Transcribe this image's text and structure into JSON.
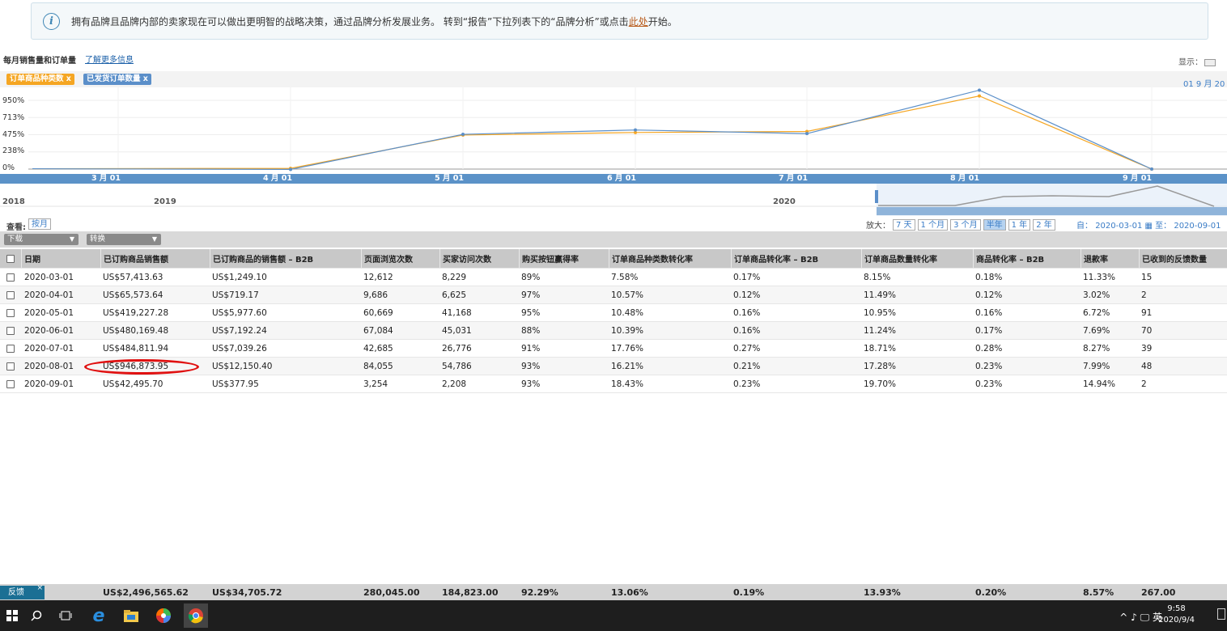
{
  "banner": {
    "icon": "info-icon",
    "message": "拥有品牌且品牌内部的卖家现在可以做出更明智的战略决策，通过品牌分析发展业务。 转到“报告”下拉列表下的“品牌分析”或点击",
    "link": "此处",
    "suffix": "开始。"
  },
  "chart": {
    "title": "每月销售量和订单量",
    "learn_more": "了解更多信息",
    "display_label": "显示：",
    "legend": [
      {
        "label": "订单商品种类数 x",
        "color": "#f5a623"
      },
      {
        "label": "已发货订单数量 x",
        "color": "#5b8fc9"
      }
    ],
    "range_label": "01 9 月 20",
    "y_ticks": [
      "950%",
      "713%",
      "475%",
      "238%",
      "0%"
    ],
    "months": [
      "3 月 01",
      "4 月 01",
      "5 月 01",
      "6 月 01",
      "7 月 01",
      "8 月 01",
      "9 月 01"
    ],
    "years": [
      "2018",
      "2019",
      "2020"
    ]
  },
  "chart_data": {
    "type": "line",
    "x": [
      "3 月 01",
      "4 月 01",
      "5 月 01",
      "6 月 01",
      "7 月 01",
      "8 月 01",
      "9 月 01"
    ],
    "series": [
      {
        "name": "订单商品种类数",
        "color": "#f5a623",
        "values": [
          5,
          10,
          470,
          505,
          520,
          1010,
          0
        ]
      },
      {
        "name": "已发货订单数量",
        "color": "#5b8fc9",
        "values": [
          5,
          -5,
          480,
          540,
          490,
          1090,
          0
        ]
      }
    ],
    "ylim": [
      0,
      950
    ]
  },
  "view": {
    "label": "查看:",
    "button": "按月",
    "zoom_label": "放大：",
    "zoom_options": [
      "7 天",
      "1 个月",
      "3 个月",
      "半年",
      "1 年",
      "2 年"
    ],
    "zoom_active": "半年",
    "from_label": "自：",
    "from": "2020-03-01",
    "to_label": "至：",
    "to": "2020-09-01"
  },
  "toolbar": {
    "download": "下载",
    "convert": "转换"
  },
  "table": {
    "headers": [
      "日期",
      "已订购商品销售额",
      "已订购商品的销售额 – B2B",
      "页面浏览次数",
      "买家访问次数",
      "购买按钮赢得率",
      "订单商品种类数转化率",
      "订单商品转化率 – B2B",
      "订单商品数量转化率",
      "商品转化率 – B2B",
      "退款率",
      "已收到的反馈数量"
    ],
    "rows": [
      [
        "2020-03-01",
        "US$57,413.63",
        "US$1,249.10",
        "12,612",
        "8,229",
        "89%",
        "7.58%",
        "0.17%",
        "8.15%",
        "0.18%",
        "11.33%",
        "15"
      ],
      [
        "2020-04-01",
        "US$65,573.64",
        "US$719.17",
        "9,686",
        "6,625",
        "97%",
        "10.57%",
        "0.12%",
        "11.49%",
        "0.12%",
        "3.02%",
        "2"
      ],
      [
        "2020-05-01",
        "US$419,227.28",
        "US$5,977.60",
        "60,669",
        "41,168",
        "95%",
        "10.48%",
        "0.16%",
        "10.95%",
        "0.16%",
        "6.72%",
        "91"
      ],
      [
        "2020-06-01",
        "US$480,169.48",
        "US$7,192.24",
        "67,084",
        "45,031",
        "88%",
        "10.39%",
        "0.16%",
        "11.24%",
        "0.17%",
        "7.69%",
        "70"
      ],
      [
        "2020-07-01",
        "US$484,811.94",
        "US$7,039.26",
        "42,685",
        "26,776",
        "91%",
        "17.76%",
        "0.27%",
        "18.71%",
        "0.28%",
        "8.27%",
        "39"
      ],
      [
        "2020-08-01",
        "US$946,873.95",
        "US$12,150.40",
        "84,055",
        "54,786",
        "93%",
        "16.21%",
        "0.21%",
        "17.28%",
        "0.23%",
        "7.99%",
        "48"
      ],
      [
        "2020-09-01",
        "US$42,495.70",
        "US$377.95",
        "3,254",
        "2,208",
        "93%",
        "18.43%",
        "0.23%",
        "19.70%",
        "0.23%",
        "14.94%",
        "2"
      ]
    ],
    "totals": [
      "US$2,496,565.62",
      "US$34,705.72",
      "280,045.00",
      "184,823.00",
      "92.29%",
      "13.06%",
      "0.19%",
      "13.93%",
      "0.20%",
      "8.57%",
      "267.00"
    ]
  },
  "feedback": {
    "label": "反馈",
    "close": "×"
  },
  "taskbar": {
    "icons": [
      "windows-icon",
      "search-icon",
      "task-view-icon",
      "edge-icon",
      "file-explorer-icon",
      "color-app-icon",
      "chrome-icon"
    ],
    "tray": "^ ♪ 🖵 英",
    "time": "9:58",
    "date": "2020/9/4"
  }
}
